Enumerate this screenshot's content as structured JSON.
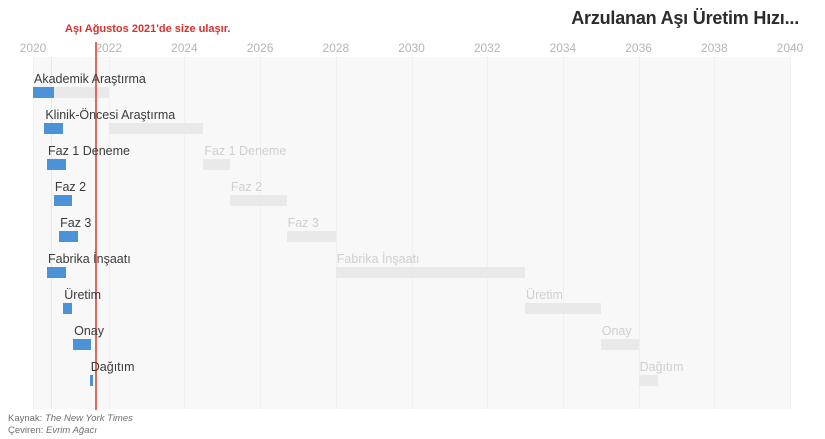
{
  "title": "Arzulanan Aşı Üretim Hızı...",
  "annotation": {
    "text": "Aşı Ağustos 2021'de size ulaşır.",
    "line_year": 2021.64
  },
  "axis": {
    "tick_labels": [
      "2020",
      "2022",
      "2024",
      "2026",
      "2028",
      "2030",
      "2032",
      "2034",
      "2036",
      "2038",
      "2040"
    ],
    "start_year": 2020,
    "end_year": 2040
  },
  "chart_data": {
    "type": "gantt",
    "title": "Arzulanan Aşı Üretim Hızı...",
    "x_unit": "year",
    "xlim": [
      2020,
      2040
    ],
    "grid": "faint-vertical",
    "series": [
      {
        "name": "hizlandirilmis-zaman-cizelgesi",
        "color_key": "fast_bar"
      },
      {
        "name": "geleneksel-zaman-cizelgesi",
        "color_key": "typical_bar"
      }
    ],
    "rows": [
      {
        "label": "Akademik Araştırma",
        "fast": [
          2020.0,
          2020.55
        ],
        "typical": [
          2020.55,
          2022.0
        ],
        "typical_label": ""
      },
      {
        "label": "Klinik-Öncesi Araştırma",
        "fast": [
          2020.3,
          2020.8
        ],
        "typical": [
          2022.0,
          2024.5
        ],
        "typical_label": ""
      },
      {
        "label": "Faz 1 Deneme",
        "fast": [
          2020.37,
          2020.87
        ],
        "typical": [
          2024.5,
          2025.2
        ],
        "typical_label": "Faz 1 Deneme"
      },
      {
        "label": "Faz 2",
        "fast": [
          2020.55,
          2021.03
        ],
        "typical": [
          2025.2,
          2026.7
        ],
        "typical_label": "Faz 2"
      },
      {
        "label": "Faz 3",
        "fast": [
          2020.69,
          2021.19
        ],
        "typical": [
          2026.7,
          2028.0
        ],
        "typical_label": "Faz 3"
      },
      {
        "label": "Fabrika İnşaatı",
        "fast": [
          2020.37,
          2020.87
        ],
        "typical": [
          2028.0,
          2033.0
        ],
        "typical_label": "Fabrika İnşaatı"
      },
      {
        "label": "Üretim",
        "fast": [
          2020.8,
          2021.03
        ],
        "typical": [
          2033.0,
          2035.0
        ],
        "typical_label": "Üretim"
      },
      {
        "label": "Onay",
        "fast": [
          2021.06,
          2021.53
        ],
        "typical": [
          2035.0,
          2036.0
        ],
        "typical_label": "Onay"
      },
      {
        "label": "Dağıtım",
        "fast": [
          2021.5,
          2021.58
        ],
        "typical": [
          2036.0,
          2036.5
        ],
        "typical_label": "Dağıtım"
      }
    ]
  },
  "footer": {
    "source_prefix": "Kaynak: ",
    "source": "The New York Times",
    "translator_prefix": "Çeviren: ",
    "translator": "Evrim Ağacı"
  },
  "colors": {
    "fast_bar": "#4b92d7",
    "typical_bar": "#e9e9e9",
    "timeline_line": "#e0695e",
    "annotation_text": "#d6322d",
    "plot_bg": "#f8f8f8",
    "gridline": "#f0f0f0",
    "minor_gridline": "#e7e7e7"
  }
}
